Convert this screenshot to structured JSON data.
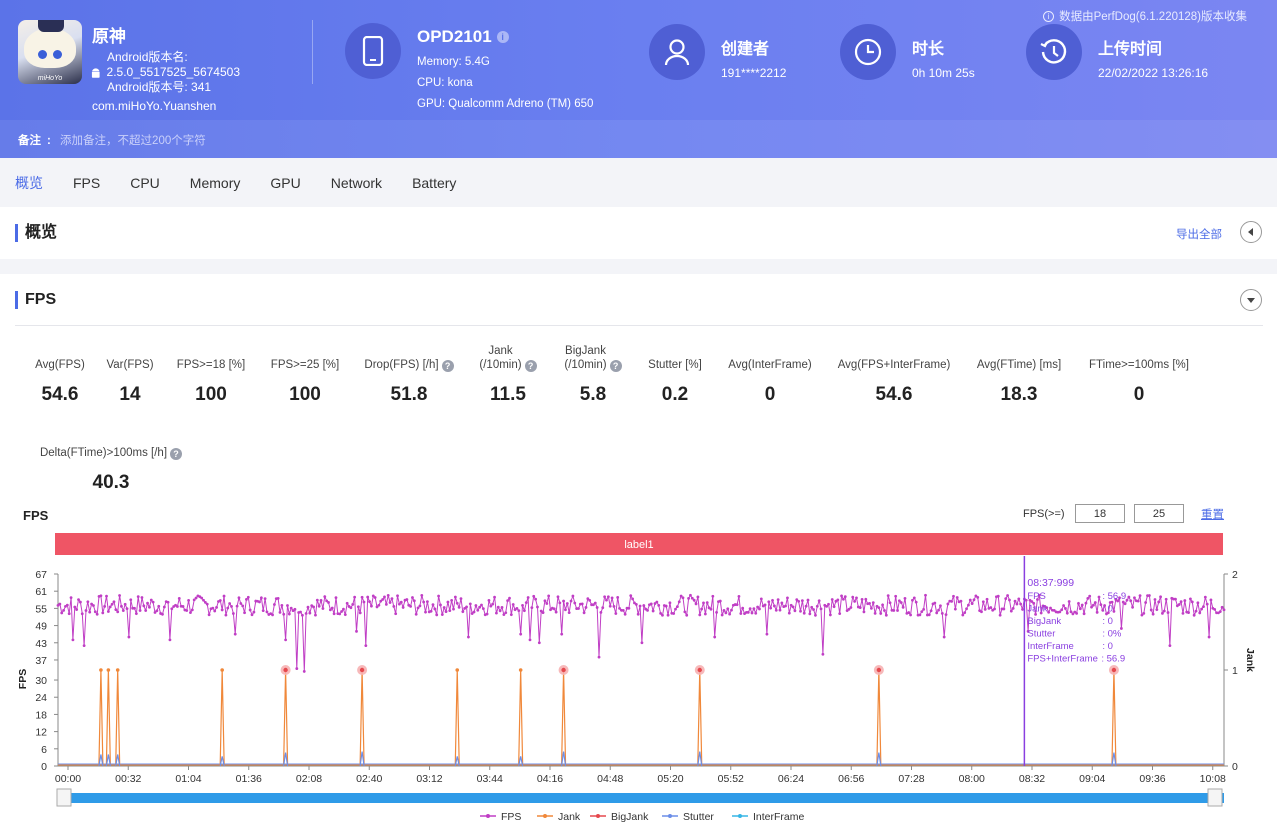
{
  "header": {
    "collect_note": "数据由PerfDog(6.1.220128)版本收集",
    "app": {
      "name": "原神",
      "version_name_label": "Android版本名:",
      "version_name": "2.5.0_5517525_5674503",
      "version_code": "Android版本号: 341",
      "package": "com.miHoYo.Yuanshen",
      "icon_logo_text": "miHoYo"
    },
    "device": {
      "model": "OPD2101",
      "memory": "Memory: 5.4G",
      "cpu": "CPU: kona",
      "gpu": "GPU: Qualcomm Adreno (TM) 650"
    },
    "creator": {
      "title": "创建者",
      "value": "191****2212"
    },
    "duration": {
      "title": "时长",
      "value": "0h 10m 25s"
    },
    "upload": {
      "title": "上传时间",
      "value": "22/02/2022 13:26:16"
    },
    "note": {
      "label": "备注",
      "placeholder": "添加备注，不超过200个字符"
    }
  },
  "tabs": [
    "概览",
    "FPS",
    "CPU",
    "Memory",
    "GPU",
    "Network",
    "Battery"
  ],
  "overview": {
    "title": "概览",
    "export_all": "导出全部"
  },
  "fps_section": {
    "title": "FPS",
    "metrics": [
      {
        "label1": "",
        "label2": "Avg(FPS)",
        "value": "54.6",
        "help": false
      },
      {
        "label1": "",
        "label2": "Var(FPS)",
        "value": "14",
        "help": false
      },
      {
        "label1": "",
        "label2": "FPS>=18 [%]",
        "value": "100",
        "help": false
      },
      {
        "label1": "",
        "label2": "FPS>=25 [%]",
        "value": "100",
        "help": false
      },
      {
        "label1": "",
        "label2": "Drop(FPS) [/h]",
        "value": "51.8",
        "help": true
      },
      {
        "label1": "Jank",
        "label2": "(/10min)",
        "value": "11.5",
        "help": true
      },
      {
        "label1": "BigJank",
        "label2": "(/10min)",
        "value": "5.8",
        "help": true
      },
      {
        "label1": "",
        "label2": "Stutter [%]",
        "value": "0.2",
        "help": false
      },
      {
        "label1": "",
        "label2": "Avg(InterFrame)",
        "value": "0",
        "help": false
      },
      {
        "label1": "",
        "label2": "Avg(FPS+InterFrame)",
        "value": "54.6",
        "help": false
      },
      {
        "label1": "",
        "label2": "Avg(FTime) [ms]",
        "value": "18.3",
        "help": false
      },
      {
        "label1": "",
        "label2": "FTime>=100ms [%]",
        "value": "0",
        "help": false
      },
      {
        "label1": "",
        "label2": "Delta(FTime)>100ms [/h]",
        "value": "40.3",
        "help": true
      }
    ],
    "chart_header": {
      "title": "FPS",
      "threshold_label": "FPS(>=)",
      "threshold_1": "18",
      "threshold_2": "25",
      "reset": "重置"
    }
  },
  "chart_data": {
    "type": "line",
    "title": "FPS",
    "label_band": "label1",
    "ylabel": "FPS",
    "y2label": "Jank",
    "y_ticks": [
      0,
      6,
      12,
      18,
      24,
      30,
      37,
      43,
      49,
      55,
      61,
      67
    ],
    "y2_ticks": [
      0,
      1,
      2
    ],
    "ylim": [
      0,
      67
    ],
    "y2lim": [
      0,
      2
    ],
    "x_ticks": [
      "00:00",
      "00:32",
      "01:04",
      "01:36",
      "02:08",
      "02:40",
      "03:12",
      "03:44",
      "04:16",
      "04:48",
      "05:20",
      "05:52",
      "06:24",
      "06:56",
      "07:28",
      "08:00",
      "08:32",
      "09:04",
      "09:36",
      "10:08"
    ],
    "duration_s": 625,
    "fps_avg": 54.6,
    "fps_dips": [
      {
        "t": 8,
        "fps": 44
      },
      {
        "t": 14,
        "fps": 42
      },
      {
        "t": 38,
        "fps": 45
      },
      {
        "t": 60,
        "fps": 44
      },
      {
        "t": 95,
        "fps": 46
      },
      {
        "t": 122,
        "fps": 44
      },
      {
        "t": 128,
        "fps": 34
      },
      {
        "t": 132,
        "fps": 33
      },
      {
        "t": 160,
        "fps": 47
      },
      {
        "t": 165,
        "fps": 42
      },
      {
        "t": 220,
        "fps": 45
      },
      {
        "t": 248,
        "fps": 46
      },
      {
        "t": 253,
        "fps": 44
      },
      {
        "t": 258,
        "fps": 43
      },
      {
        "t": 270,
        "fps": 46
      },
      {
        "t": 290,
        "fps": 38
      },
      {
        "t": 313,
        "fps": 43
      },
      {
        "t": 352,
        "fps": 45
      },
      {
        "t": 380,
        "fps": 46
      },
      {
        "t": 410,
        "fps": 39
      },
      {
        "t": 475,
        "fps": 45
      },
      {
        "t": 520,
        "fps": 47
      },
      {
        "t": 570,
        "fps": 48
      },
      {
        "t": 596,
        "fps": 42
      },
      {
        "t": 617,
        "fps": 45
      }
    ],
    "series": [
      {
        "name": "FPS",
        "color": "#c03ec5"
      },
      {
        "name": "Jank",
        "color": "#f0883a"
      },
      {
        "name": "BigJank",
        "color": "#e5484d"
      },
      {
        "name": "Stutter",
        "color": "#6b8ee8"
      },
      {
        "name": "InterFrame",
        "color": "#35b6e6"
      }
    ],
    "jank_events": [
      {
        "t": 23,
        "big": false,
        "stutter": 0.12
      },
      {
        "t": 27,
        "big": false,
        "stutter": 0.12
      },
      {
        "t": 32,
        "big": false,
        "stutter": 0.12
      },
      {
        "t": 88,
        "big": false,
        "stutter": 0.1
      },
      {
        "t": 122,
        "big": true,
        "stutter": 0.14
      },
      {
        "t": 163,
        "big": true,
        "stutter": 0.15
      },
      {
        "t": 214,
        "big": false,
        "stutter": 0.1
      },
      {
        "t": 248,
        "big": false,
        "stutter": 0.1
      },
      {
        "t": 271,
        "big": true,
        "stutter": 0.15
      },
      {
        "t": 344,
        "big": true,
        "stutter": 0.15
      },
      {
        "t": 440,
        "big": true,
        "stutter": 0.14
      },
      {
        "t": 566,
        "big": true,
        "stutter": 0.14
      }
    ],
    "cursor_t": 517.999,
    "tooltip": {
      "time": "08:37:999",
      "rows": [
        {
          "k": "FPS",
          "v": ": 56.9"
        },
        {
          "k": "Jank",
          "v": ": 0"
        },
        {
          "k": "BigJank",
          "v": ": 0"
        },
        {
          "k": "Stutter",
          "v": ": 0%"
        },
        {
          "k": "InterFrame",
          "v": ": 0"
        },
        {
          "k": "FPS+InterFrame",
          "v": ": 56.9"
        }
      ]
    }
  }
}
